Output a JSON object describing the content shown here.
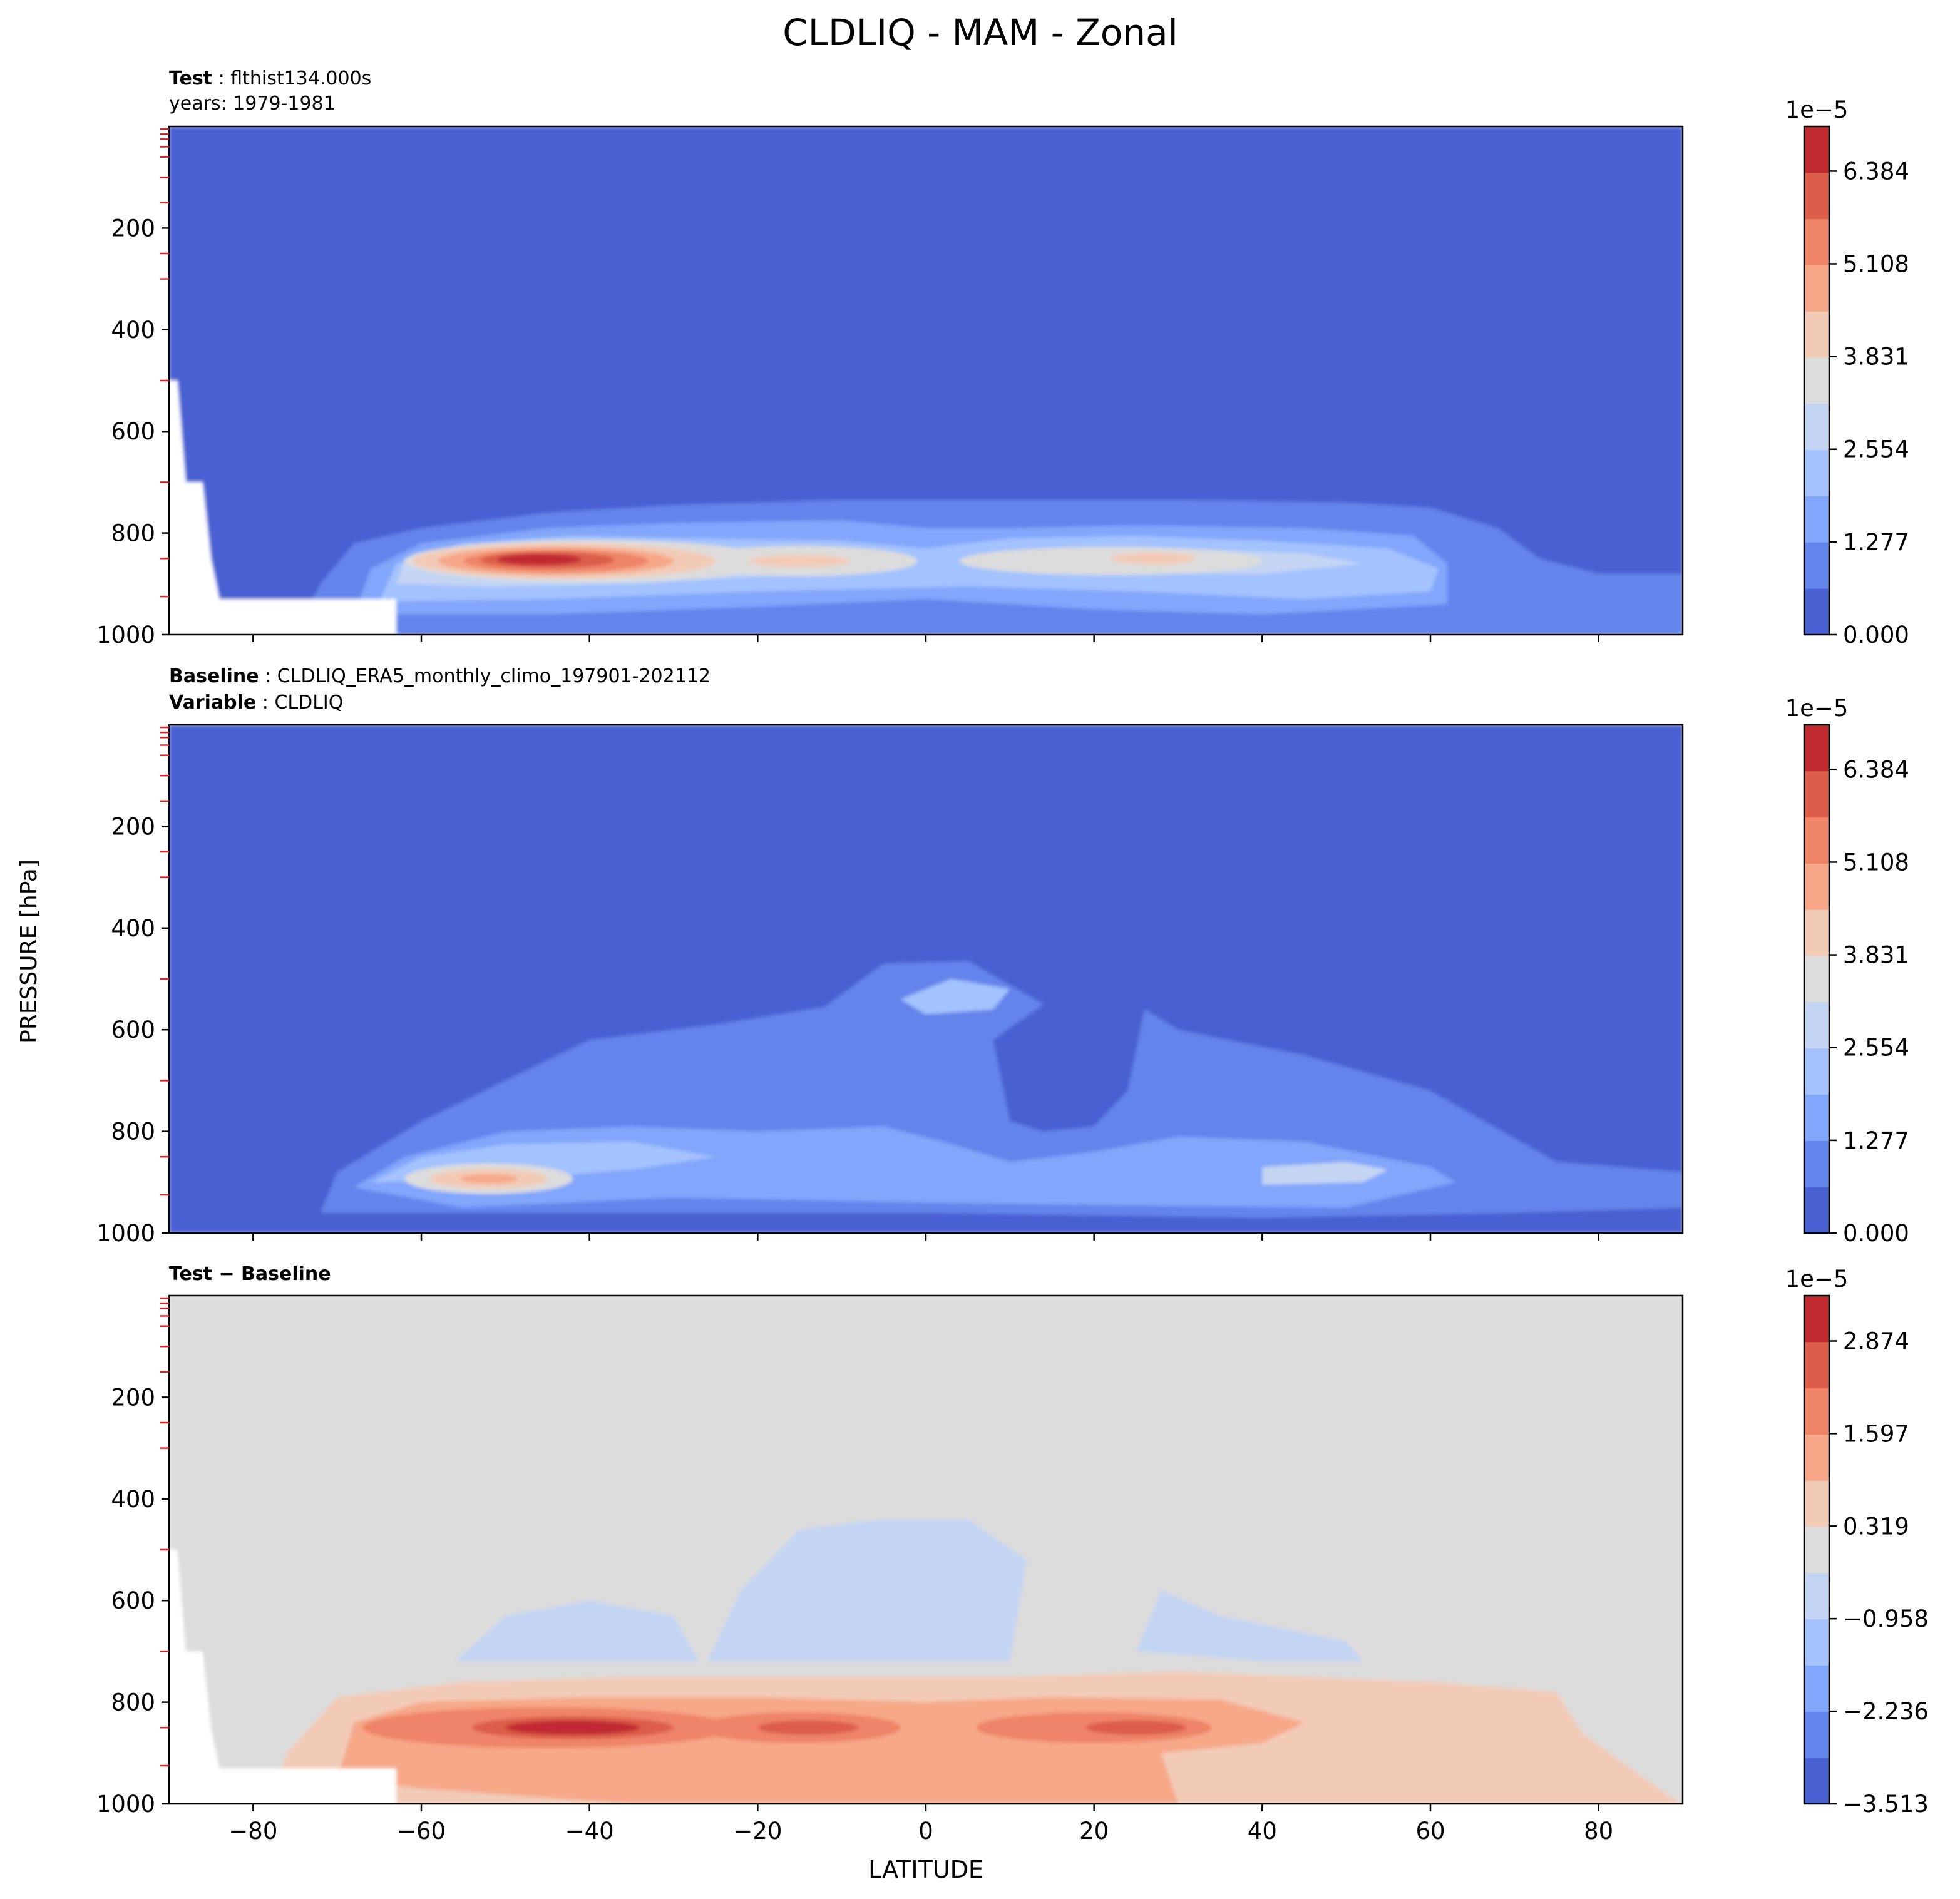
{
  "title": "CLDLIQ - MAM - Zonal",
  "ylabel": "PRESSURE [hPa]",
  "xlabel": "LATITUDE",
  "panels": [
    {
      "header": [
        {
          "bold": "Test",
          "sep": " : ",
          "text": "flthist134.000s"
        },
        {
          "bold": "",
          "sep": "",
          "text": "years: 1979-1981"
        }
      ]
    },
    {
      "header": [
        {
          "bold": "Baseline",
          "sep": " : ",
          "text": "CLDLIQ_ERA5_monthly_climo_197901-202112"
        },
        {
          "bold": "Variable",
          "sep": " : ",
          "text": "CLDLIQ"
        }
      ]
    },
    {
      "header": [
        {
          "bold": "Test − Baseline",
          "sep": "",
          "text": ""
        }
      ]
    }
  ],
  "chart_data": [
    {
      "type": "heatmap",
      "field": "CLDLIQ (Test)",
      "xlim": [
        -90,
        90
      ],
      "ylim": [
        1000,
        0
      ],
      "x_ticks": [
        -80,
        -60,
        -40,
        -20,
        0,
        20,
        40,
        60,
        80
      ],
      "y_ticks": [
        200,
        400,
        600,
        800,
        1000
      ],
      "colorbar": {
        "exponent_label": "1e−5",
        "tick_labels": [
          "0.000",
          "1.277",
          "2.554",
          "3.831",
          "5.108",
          "6.384"
        ],
        "range": [
          0,
          7.0
        ],
        "colors": [
          "#4961d2",
          "#6384eb",
          "#82a6fb",
          "#a3c2fe",
          "#c4d5f3",
          "#dddcdc",
          "#f2cbb7",
          "#f6a889",
          "#ef8467",
          "#dc5d4a",
          "#c12b30"
        ]
      },
      "features": [
        {
          "desc": "max low-level liquid water near 45S",
          "lat": -45,
          "pressure_hPa": 850,
          "value": 6.9
        },
        {
          "desc": "secondary maximum near 25N",
          "lat": 25,
          "pressure_hPa": 850,
          "value": 4.2
        },
        {
          "desc": "tropical band",
          "lat": -15,
          "pressure_hPa": 850,
          "value": 4.0
        }
      ]
    },
    {
      "type": "heatmap",
      "field": "CLDLIQ (Baseline ERA5)",
      "xlim": [
        -90,
        90
      ],
      "ylim": [
        1000,
        0
      ],
      "x_ticks": [
        -80,
        -60,
        -40,
        -20,
        0,
        20,
        40,
        60,
        80
      ],
      "y_ticks": [
        200,
        400,
        600,
        800,
        1000
      ],
      "colorbar": {
        "exponent_label": "1e−5",
        "tick_labels": [
          "0.000",
          "1.277",
          "2.554",
          "3.831",
          "5.108",
          "6.384"
        ],
        "range": [
          0,
          7.0
        ],
        "colors": [
          "#4961d2",
          "#6384eb",
          "#82a6fb",
          "#a3c2fe",
          "#c4d5f3",
          "#dddcdc",
          "#f2cbb7",
          "#f6a889",
          "#ef8467",
          "#dc5d4a",
          "#c12b30"
        ]
      },
      "features": [
        {
          "desc": "southern midlatitude maximum",
          "lat": -52,
          "pressure_hPa": 890,
          "value": 4.6
        },
        {
          "desc": "mid-level tropical feature",
          "lat": 0,
          "pressure_hPa": 540,
          "value": 2.5
        },
        {
          "desc": "northern midlatitude band",
          "lat": 50,
          "pressure_hPa": 880,
          "value": 2.2
        }
      ]
    },
    {
      "type": "heatmap",
      "field": "CLDLIQ (Test − Baseline)",
      "xlim": [
        -90,
        90
      ],
      "ylim": [
        1000,
        0
      ],
      "x_ticks": [
        -80,
        -60,
        -40,
        -20,
        0,
        20,
        40,
        60,
        80
      ],
      "y_ticks": [
        200,
        400,
        600,
        800,
        1000
      ],
      "colorbar": {
        "exponent_label": "1e−5",
        "tick_labels": [
          "−3.513",
          "−2.236",
          "−0.958",
          "0.319",
          "1.597",
          "2.874"
        ],
        "range": [
          -3.513,
          3.5
        ],
        "colors": [
          "#4961d2",
          "#6384eb",
          "#82a6fb",
          "#a3c2fe",
          "#c4d5f3",
          "#dddcdc",
          "#f2cbb7",
          "#f6a889",
          "#ef8467",
          "#dc5d4a",
          "#c12b30"
        ]
      },
      "features": [
        {
          "desc": "positive difference near 40S",
          "lat": -40,
          "pressure_hPa": 850,
          "value": 3.3
        },
        {
          "desc": "positive difference near 15S",
          "lat": -15,
          "pressure_hPa": 850,
          "value": 2.4
        },
        {
          "desc": "negative mid-level difference",
          "lat": -5,
          "pressure_hPa": 560,
          "value": -1.0
        }
      ]
    }
  ]
}
